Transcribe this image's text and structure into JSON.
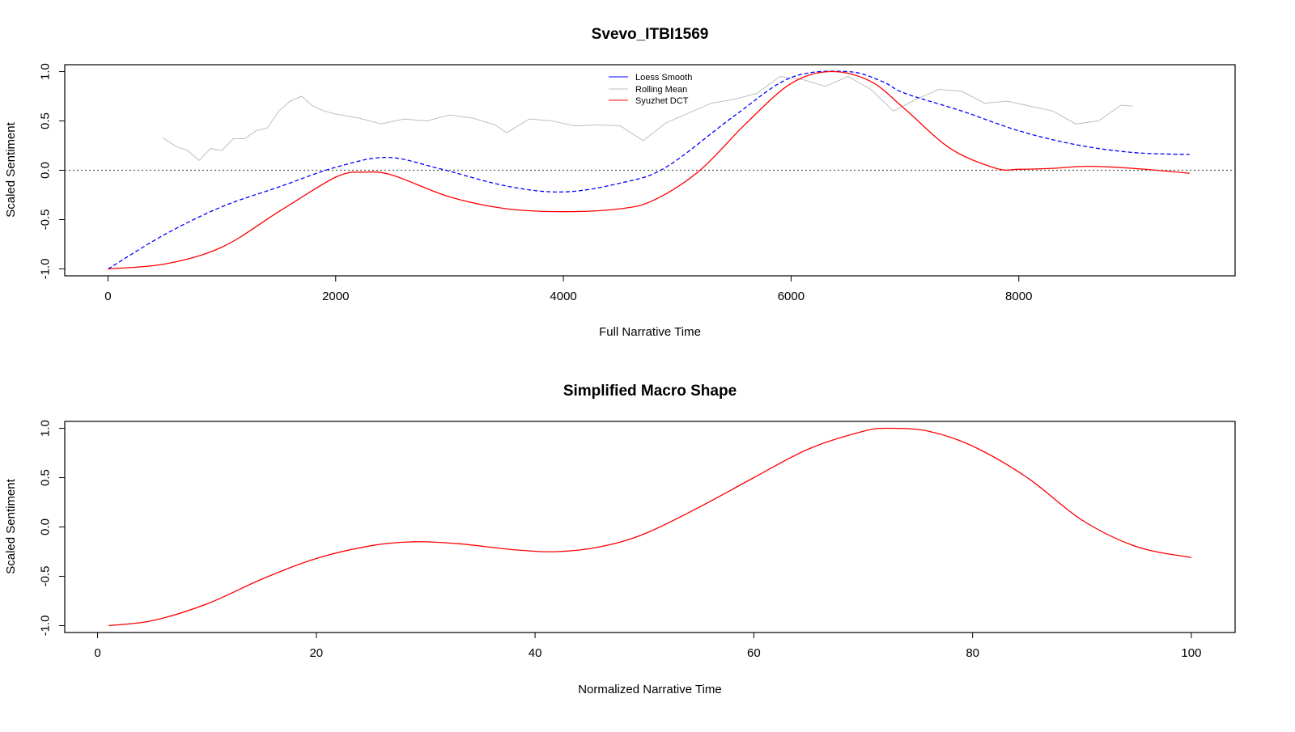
{
  "colors": {
    "loess": "#0000ff",
    "rolling": "#bebebe",
    "dct": "#ff0000",
    "axis": "#000000",
    "zero_line": "#555555"
  },
  "chart_data": [
    {
      "type": "line",
      "title": "Svevo_ITBI1569",
      "xlabel": "Full Narrative Time",
      "ylabel": "Scaled Sentiment",
      "xlim": [
        -380,
        9900
      ],
      "ylim": [
        -1.07,
        1.07
      ],
      "xticks": [
        0,
        2000,
        4000,
        6000,
        8000
      ],
      "xtick_labels": [
        "0",
        "2000",
        "4000",
        "6000",
        "8000"
      ],
      "yticks": [
        -1.0,
        -0.5,
        0.0,
        0.5,
        1.0
      ],
      "ytick_labels": [
        "-1.0",
        "-0.5",
        "0.0",
        "0.5",
        "1.0"
      ],
      "reference_line": {
        "y": 0,
        "style": "dotted"
      },
      "legend": {
        "position": "top-center",
        "entries": [
          "Loess Smooth",
          "Rolling Mean",
          "Syuzhet DCT"
        ]
      },
      "series": [
        {
          "name": "Loess Smooth",
          "style": "dashed",
          "x": [
            0,
            500,
            1000,
            1500,
            2000,
            2450,
            2900,
            3500,
            4000,
            4500,
            4900,
            5500,
            6000,
            6500,
            6800,
            7000,
            7500,
            8000,
            8500,
            9000,
            9500
          ],
          "y": [
            -1.0,
            -0.65,
            -0.37,
            -0.17,
            0.03,
            0.13,
            0.02,
            -0.16,
            -0.22,
            -0.13,
            0.03,
            0.55,
            0.94,
            1.0,
            0.9,
            0.78,
            0.6,
            0.4,
            0.26,
            0.18,
            0.16
          ]
        },
        {
          "name": "Rolling Mean",
          "style": "solid",
          "x": [
            480,
            600,
            700,
            800,
            900,
            1000,
            1100,
            1200,
            1300,
            1400,
            1500,
            1600,
            1700,
            1800,
            1900,
            2000,
            2200,
            2400,
            2600,
            2800,
            3000,
            3200,
            3400,
            3500,
            3700,
            3900,
            4100,
            4300,
            4500,
            4700,
            4900,
            5100,
            5300,
            5500,
            5700,
            5900,
            6100,
            6300,
            6500,
            6700,
            6900,
            7100,
            7300,
            7500,
            7700,
            7900,
            8100,
            8300,
            8500,
            8700,
            8900,
            9000
          ],
          "y": [
            0.33,
            0.24,
            0.2,
            0.1,
            0.22,
            0.2,
            0.32,
            0.32,
            0.4,
            0.43,
            0.6,
            0.7,
            0.75,
            0.65,
            0.6,
            0.57,
            0.53,
            0.47,
            0.52,
            0.5,
            0.56,
            0.53,
            0.46,
            0.38,
            0.52,
            0.5,
            0.45,
            0.46,
            0.45,
            0.3,
            0.48,
            0.58,
            0.68,
            0.72,
            0.78,
            0.95,
            0.92,
            0.85,
            0.95,
            0.82,
            0.6,
            0.72,
            0.82,
            0.8,
            0.68,
            0.7,
            0.65,
            0.6,
            0.47,
            0.5,
            0.66,
            0.65
          ]
        },
        {
          "name": "Syuzhet DCT",
          "style": "solid",
          "x": [
            0,
            500,
            1000,
            1500,
            2000,
            2250,
            2500,
            3000,
            3500,
            4000,
            4500,
            4800,
            5200,
            5600,
            6000,
            6350,
            6700,
            7000,
            7400,
            7800,
            8000,
            8300,
            8600,
            9000,
            9500
          ],
          "y": [
            -1.0,
            -0.95,
            -0.78,
            -0.42,
            -0.07,
            -0.02,
            -0.05,
            -0.27,
            -0.39,
            -0.42,
            -0.39,
            -0.3,
            0.0,
            0.47,
            0.88,
            1.0,
            0.9,
            0.62,
            0.22,
            0.02,
            0.01,
            0.02,
            0.04,
            0.02,
            -0.03
          ]
        }
      ]
    },
    {
      "type": "line",
      "title": "Simplified Macro Shape",
      "xlabel": "Normalized Narrative Time",
      "ylabel": "Scaled Sentiment",
      "xlim": [
        -3,
        104
      ],
      "ylim": [
        -1.07,
        1.07
      ],
      "xticks": [
        0,
        20,
        40,
        60,
        80,
        100
      ],
      "xtick_labels": [
        "0",
        "20",
        "40",
        "60",
        "80",
        "100"
      ],
      "yticks": [
        -1.0,
        -0.5,
        0.0,
        0.5,
        1.0
      ],
      "ytick_labels": [
        "-1.0",
        "-0.5",
        "0.0",
        "0.5",
        "1.0"
      ],
      "series": [
        {
          "style": "solid",
          "x": [
            1,
            5,
            10,
            15,
            20,
            25,
            29,
            33,
            38,
            42,
            46,
            50,
            55,
            60,
            65,
            70,
            72.5,
            76,
            80,
            85,
            90,
            95,
            100
          ],
          "y": [
            -1.0,
            -0.95,
            -0.78,
            -0.53,
            -0.32,
            -0.19,
            -0.15,
            -0.17,
            -0.23,
            -0.25,
            -0.2,
            -0.07,
            0.2,
            0.5,
            0.79,
            0.97,
            1.0,
            0.97,
            0.82,
            0.5,
            0.07,
            -0.2,
            -0.31
          ]
        }
      ]
    }
  ]
}
